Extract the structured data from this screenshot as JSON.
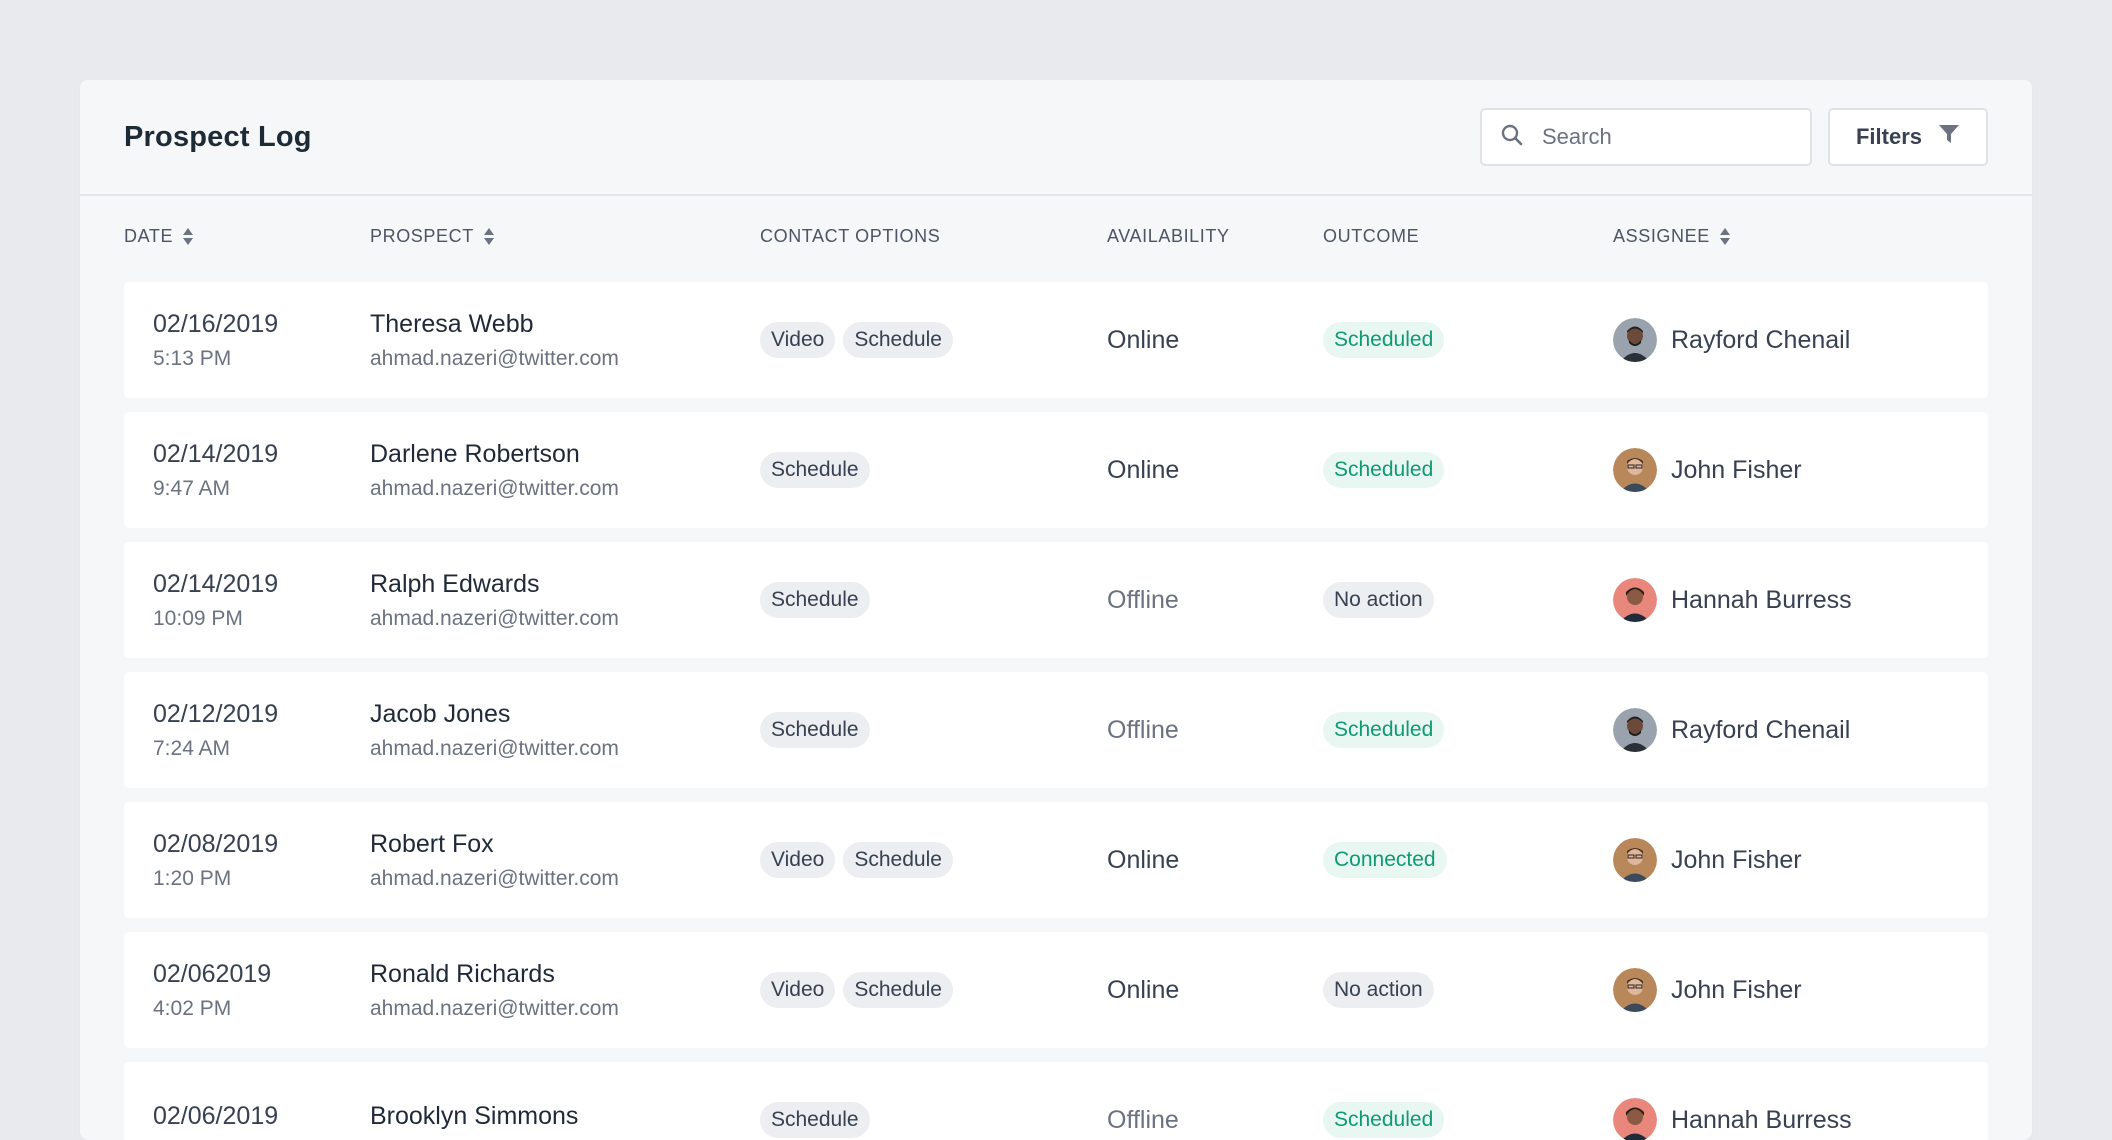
{
  "header": {
    "title": "Prospect Log",
    "search_placeholder": "Search",
    "filters_label": "Filters"
  },
  "columns": {
    "date": "Date",
    "prospect": "Prospect",
    "contact": "Contact Options",
    "availability": "Availability",
    "outcome": "Outcome",
    "assignee": "Assignee"
  },
  "colors": {
    "accent_green": "#0f9a74",
    "chip_bg": "#eceef1",
    "page_bg": "#e8eaed"
  },
  "rows": [
    {
      "date": "02/16/2019",
      "time": "5:13 PM",
      "name": "Theresa Webb",
      "email": "ahmad.nazeri@twitter.com",
      "contact": [
        "Video",
        "Schedule"
      ],
      "availability": "Online",
      "outcome": "Scheduled",
      "assignee": "Rayford Chenail",
      "avatar": "rayford-avatar"
    },
    {
      "date": "02/14/2019",
      "time": "9:47 AM",
      "name": "Darlene Robertson",
      "email": "ahmad.nazeri@twitter.com",
      "contact": [
        "Schedule"
      ],
      "availability": "Online",
      "outcome": "Scheduled",
      "assignee": "John Fisher",
      "avatar": "john-avatar"
    },
    {
      "date": "02/14/2019",
      "time": "10:09 PM",
      "name": "Ralph Edwards",
      "email": "ahmad.nazeri@twitter.com",
      "contact": [
        "Schedule"
      ],
      "availability": "Offline",
      "outcome": "No action",
      "assignee": "Hannah Burress",
      "avatar": "hannah-avatar"
    },
    {
      "date": "02/12/2019",
      "time": "7:24 AM",
      "name": "Jacob Jones",
      "email": "ahmad.nazeri@twitter.com",
      "contact": [
        "Schedule"
      ],
      "availability": "Offline",
      "outcome": "Scheduled",
      "assignee": "Rayford Chenail",
      "avatar": "rayford-avatar"
    },
    {
      "date": "02/08/2019",
      "time": "1:20 PM",
      "name": "Robert Fox",
      "email": "ahmad.nazeri@twitter.com",
      "contact": [
        "Video",
        "Schedule"
      ],
      "availability": "Online",
      "outcome": "Connected",
      "assignee": "John Fisher",
      "avatar": "john-avatar"
    },
    {
      "date": "02/062019",
      "time": "4:02 PM",
      "name": "Ronald Richards",
      "email": "ahmad.nazeri@twitter.com",
      "contact": [
        "Video",
        "Schedule"
      ],
      "availability": "Online",
      "outcome": "No action",
      "assignee": "John Fisher",
      "avatar": "john-avatar"
    },
    {
      "date": "02/06/2019",
      "time": "",
      "name": "Brooklyn Simmons",
      "email": "",
      "contact": [
        "Schedule"
      ],
      "availability": "Offline",
      "outcome": "Scheduled",
      "assignee": "Hannah Burress",
      "avatar": "hannah-avatar"
    }
  ]
}
